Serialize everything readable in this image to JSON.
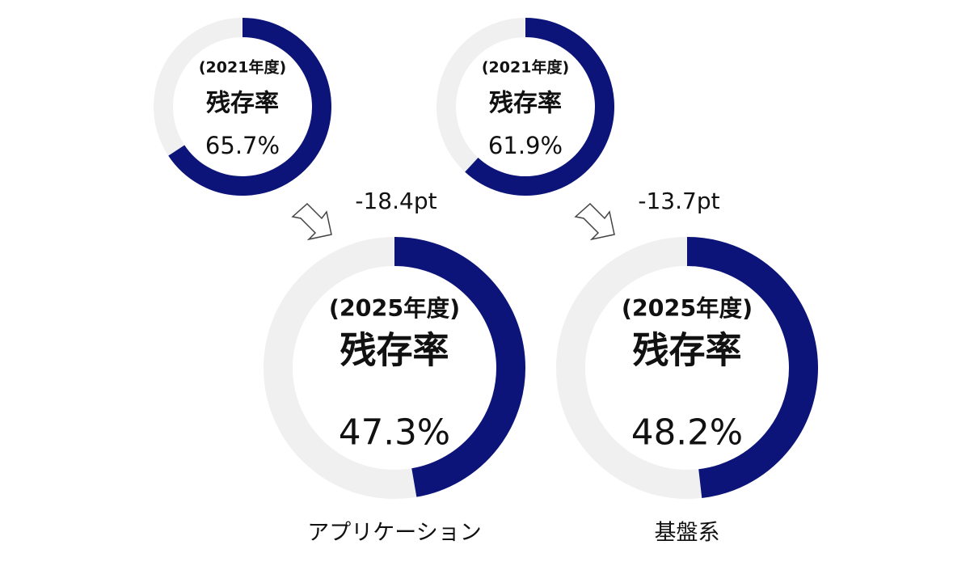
{
  "chart_data": [
    {
      "type": "donut",
      "subtitle": "(2021年度)",
      "title": "残存率",
      "values": [
        65.7
      ],
      "value_labels": [
        "65.7%"
      ],
      "color": "#0c1479",
      "track_color": "#f0f0f0"
    },
    {
      "type": "donut",
      "subtitle": "(2021年度)",
      "title": "残存率",
      "values": [
        61.9
      ],
      "value_labels": [
        "61.9%"
      ],
      "color": "#0c1479",
      "track_color": "#f0f0f0"
    },
    {
      "type": "donut",
      "subtitle": "(2025年度)",
      "title": "残存率",
      "values": [
        47.3
      ],
      "value_labels": [
        "47.3%"
      ],
      "color": "#0c1479",
      "track_color": "#f0f0f0",
      "annotation": "-18.4pt",
      "label": "アプリケーション"
    },
    {
      "type": "donut",
      "subtitle": "(2025年度)",
      "title": "残存率",
      "values": [
        48.2
      ],
      "value_labels": [
        "48.2%"
      ],
      "color": "#0c1479",
      "track_color": "#f0f0f0",
      "annotation": "-13.7pt",
      "label": "基盤系"
    }
  ]
}
